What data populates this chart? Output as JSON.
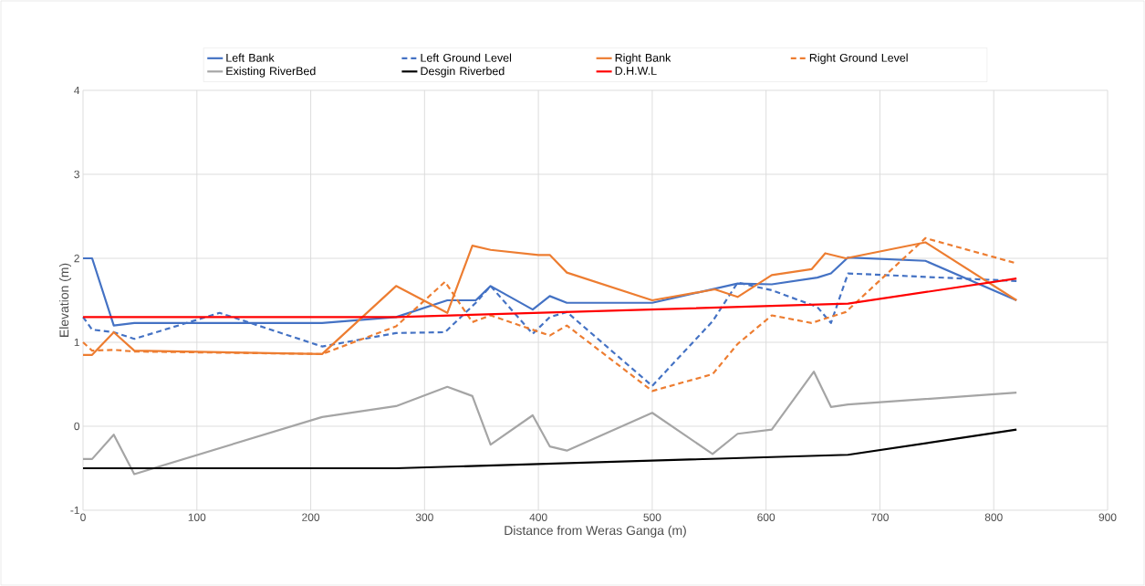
{
  "chart_data": {
    "type": "line",
    "xlabel": "Distance from Weras Ganga (m)",
    "ylabel": "Elevation (m)",
    "xlim": [
      0,
      900
    ],
    "xticks": [
      0,
      100,
      200,
      300,
      400,
      500,
      600,
      700,
      800,
      900
    ],
    "ylim": [
      -1,
      4
    ],
    "yticks": [
      -1,
      0,
      1,
      2,
      3,
      4
    ],
    "grid": true,
    "legend": "top",
    "marker": "none",
    "series": [
      {
        "name": "Left Bank",
        "color": "#4472c4",
        "line_style": "solid",
        "x": [
          0,
          8,
          27,
          45,
          210,
          275,
          320,
          345,
          358,
          395,
          410,
          425,
          500,
          575,
          605,
          645,
          657,
          672,
          740,
          820
        ],
        "values": [
          2.0,
          2.0,
          1.2,
          1.23,
          1.23,
          1.3,
          1.5,
          1.5,
          1.67,
          1.39,
          1.55,
          1.47,
          1.47,
          1.7,
          1.69,
          1.77,
          1.82,
          2.01,
          1.97,
          1.5
        ]
      },
      {
        "name": "Left Ground Level",
        "color": "#4472c4",
        "line_style": "dashed",
        "x": [
          0,
          8,
          27,
          45,
          120,
          210,
          275,
          318,
          345,
          358,
          395,
          410,
          425,
          500,
          553,
          575,
          605,
          645,
          657,
          672,
          820
        ],
        "values": [
          1.3,
          1.15,
          1.12,
          1.04,
          1.35,
          0.95,
          1.11,
          1.12,
          1.47,
          1.67,
          1.1,
          1.3,
          1.36,
          0.48,
          1.25,
          1.71,
          1.62,
          1.42,
          1.23,
          1.82,
          1.73
        ]
      },
      {
        "name": "Right Bank",
        "color": "#ed7d31",
        "line_style": "solid",
        "x": [
          0,
          8,
          27,
          45,
          210,
          275,
          320,
          342,
          358,
          400,
          410,
          425,
          500,
          555,
          575,
          605,
          640,
          652,
          670,
          740,
          820
        ],
        "values": [
          0.85,
          0.85,
          1.12,
          0.9,
          0.86,
          1.67,
          1.35,
          2.15,
          2.1,
          2.04,
          2.04,
          1.83,
          1.5,
          1.63,
          1.54,
          1.8,
          1.87,
          2.06,
          2.0,
          2.19,
          1.5
        ]
      },
      {
        "name": "Right Ground Level",
        "color": "#ed7d31",
        "line_style": "dashed",
        "x": [
          0,
          8,
          27,
          45,
          210,
          275,
          318,
          342,
          358,
          410,
          425,
          500,
          553,
          575,
          605,
          640,
          670,
          740,
          820
        ],
        "values": [
          1.0,
          0.9,
          0.91,
          0.89,
          0.86,
          1.19,
          1.72,
          1.24,
          1.32,
          1.08,
          1.2,
          0.42,
          0.62,
          0.98,
          1.32,
          1.23,
          1.36,
          2.24,
          1.94
        ]
      },
      {
        "name": "Existing RiverBed",
        "color": "#a5a5a5",
        "line_style": "solid",
        "x": [
          0,
          8,
          27,
          45,
          210,
          275,
          320,
          342,
          358,
          395,
          410,
          425,
          500,
          553,
          575,
          605,
          642,
          657,
          672,
          820
        ],
        "values": [
          -0.39,
          -0.39,
          -0.1,
          -0.57,
          0.11,
          0.24,
          0.47,
          0.36,
          -0.22,
          0.13,
          -0.24,
          -0.29,
          0.16,
          -0.33,
          -0.09,
          -0.04,
          0.65,
          0.23,
          0.26,
          0.4
        ]
      },
      {
        "name": "Desgin Riverbed",
        "color": "#000000",
        "line_style": "solid",
        "x": [
          0,
          275,
          672,
          820
        ],
        "values": [
          -0.5,
          -0.5,
          -0.34,
          -0.04
        ]
      },
      {
        "name": "D.H.W.L",
        "color": "#ff0000",
        "line_style": "solid",
        "x": [
          0,
          275,
          672,
          820
        ],
        "values": [
          1.3,
          1.3,
          1.46,
          1.76
        ]
      }
    ]
  }
}
